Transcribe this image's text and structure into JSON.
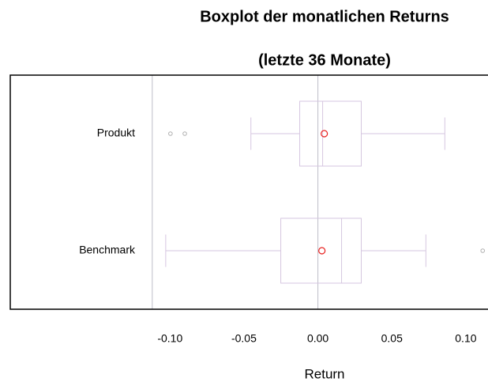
{
  "chart_data": {
    "type": "boxplot",
    "title": "Boxplot der monatlichen Returns",
    "subtitle": "(letzte 36 Monate)",
    "x_label": "Return",
    "xlim": [
      -0.208,
      0.115
    ],
    "xticks": [
      {
        "value": -0.1,
        "label": "-0.10"
      },
      -0.05,
      {
        "value": 0,
        "label": "0.00"
      },
      0.05,
      {
        "value": 0.1,
        "label": "0.10"
      }
    ],
    "vlines": [
      -0.112,
      0
    ],
    "box_color": "#d6c6e0",
    "mean_color": "#e8201e",
    "outlier_color": "#b0b0b0",
    "vline_color": "#bdbdc8",
    "boxes": [
      {
        "name": "Produkt",
        "whisker_low": -0.0453,
        "q1": -0.0123,
        "median": 0.0032,
        "q3": 0.0293,
        "whisker_high": 0.0858,
        "mean": 0.0043,
        "outliers": [
          -0.0997,
          -0.09
        ]
      },
      {
        "name": "Benchmark",
        "whisker_low": -0.1029,
        "q1": -0.0251,
        "median": 0.016,
        "q3": 0.0293,
        "whisker_high": 0.073,
        "mean": 0.0027,
        "outliers": [
          0.1114
        ]
      }
    ]
  }
}
